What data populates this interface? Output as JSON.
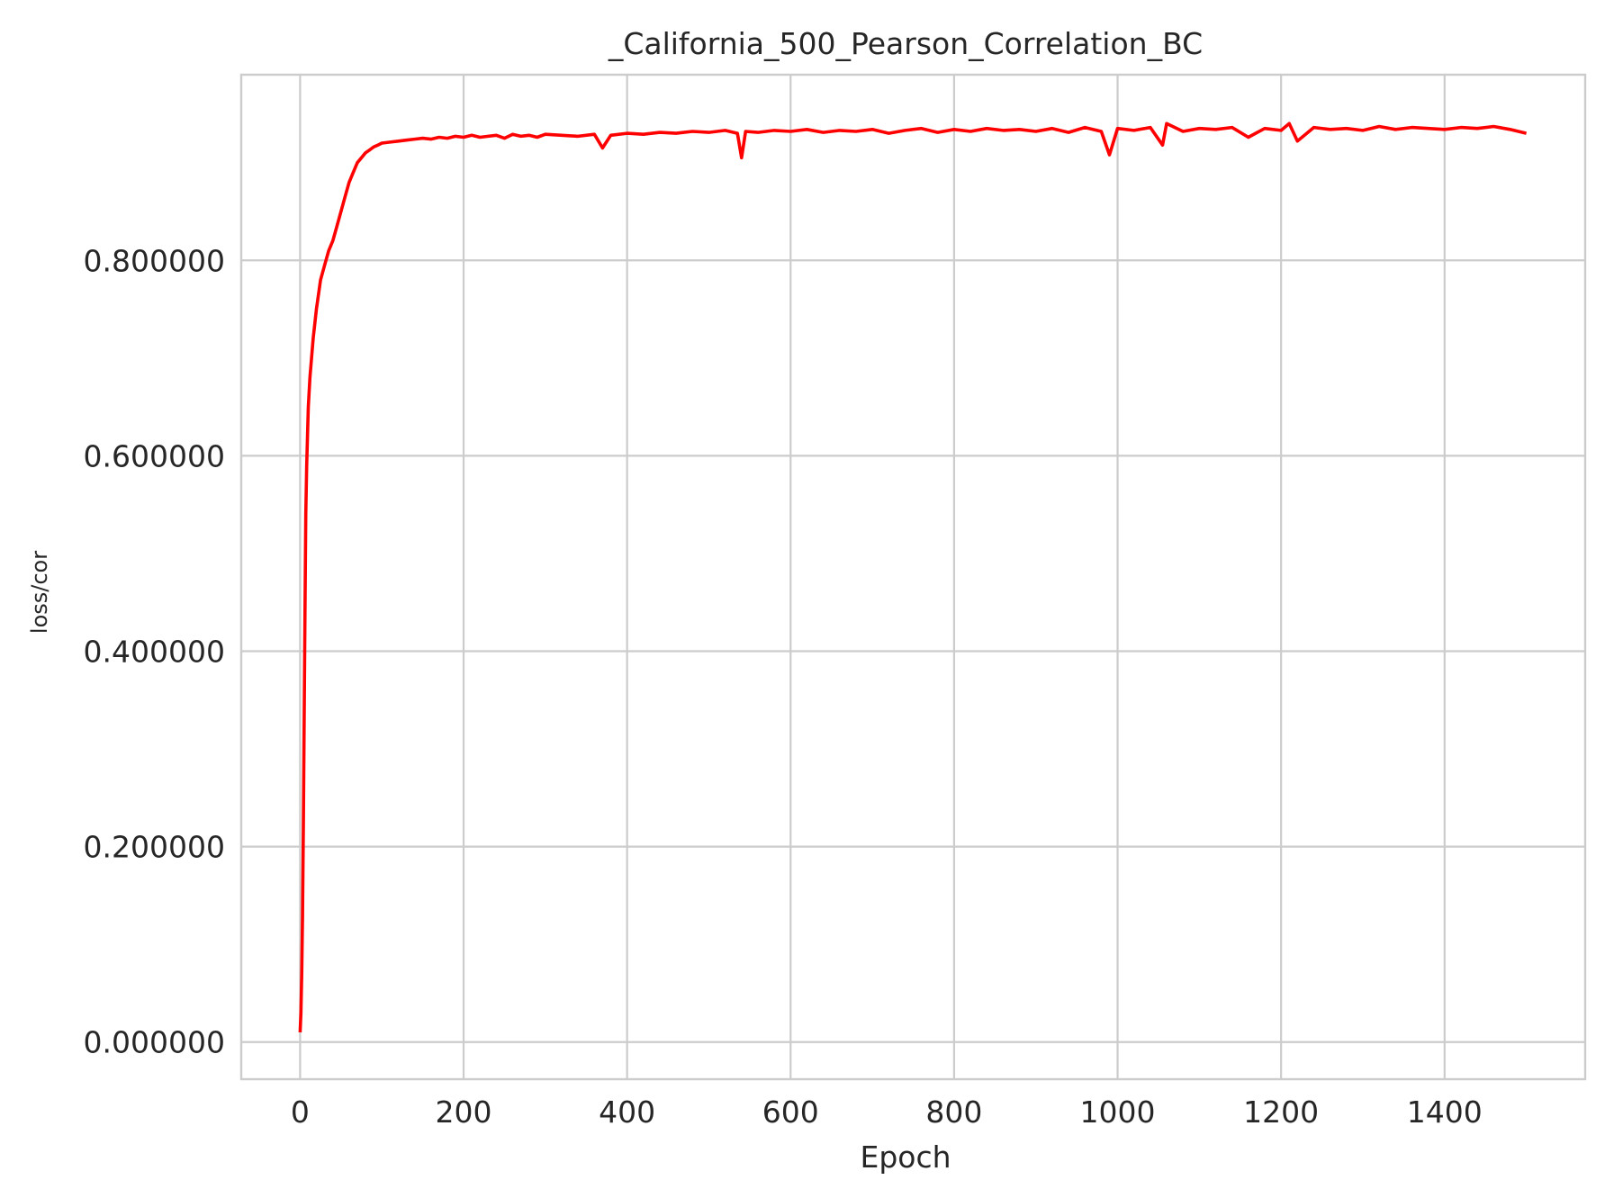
{
  "chart_data": {
    "type": "line",
    "title": "_California_500_Pearson_Correlation_BC",
    "xlabel": "Epoch",
    "ylabel": "loss/cor",
    "xlim": [
      -72,
      1572
    ],
    "ylim": [
      -0.038,
      0.99
    ],
    "x_ticks": [
      0,
      200,
      400,
      600,
      800,
      1000,
      1200,
      1400
    ],
    "x_tick_labels": [
      "0",
      "200",
      "400",
      "600",
      "800",
      "1000",
      "1200",
      "1400"
    ],
    "y_ticks": [
      0.0,
      0.2,
      0.4,
      0.6,
      0.8
    ],
    "y_tick_labels": [
      "0.000000",
      "0.200000",
      "0.400000",
      "0.600000",
      "0.800000"
    ],
    "grid": true,
    "series": [
      {
        "color": "#ff0000",
        "x": [
          0,
          1,
          2,
          3,
          4,
          5,
          6,
          7,
          8,
          9,
          10,
          12,
          14,
          16,
          18,
          20,
          25,
          30,
          35,
          40,
          45,
          50,
          55,
          60,
          65,
          70,
          75,
          80,
          85,
          90,
          95,
          100,
          110,
          120,
          130,
          140,
          150,
          160,
          170,
          180,
          190,
          200,
          210,
          220,
          230,
          240,
          250,
          260,
          270,
          280,
          290,
          300,
          320,
          340,
          360,
          370,
          380,
          400,
          420,
          440,
          460,
          480,
          500,
          520,
          535,
          540,
          545,
          560,
          580,
          600,
          620,
          640,
          660,
          680,
          700,
          720,
          740,
          760,
          780,
          800,
          820,
          840,
          860,
          880,
          900,
          920,
          940,
          960,
          980,
          990,
          1000,
          1020,
          1040,
          1055,
          1060,
          1080,
          1100,
          1120,
          1140,
          1160,
          1180,
          1200,
          1210,
          1220,
          1240,
          1260,
          1280,
          1300,
          1320,
          1340,
          1360,
          1380,
          1400,
          1420,
          1440,
          1460,
          1480,
          1500
        ],
        "y": [
          0.01,
          0.03,
          0.07,
          0.13,
          0.22,
          0.33,
          0.44,
          0.54,
          0.59,
          0.62,
          0.65,
          0.68,
          0.7,
          0.72,
          0.735,
          0.75,
          0.78,
          0.795,
          0.81,
          0.82,
          0.835,
          0.85,
          0.865,
          0.88,
          0.89,
          0.9,
          0.905,
          0.91,
          0.913,
          0.916,
          0.918,
          0.92,
          0.921,
          0.922,
          0.923,
          0.924,
          0.925,
          0.924,
          0.926,
          0.925,
          0.927,
          0.926,
          0.928,
          0.926,
          0.927,
          0.928,
          0.925,
          0.929,
          0.927,
          0.928,
          0.926,
          0.929,
          0.928,
          0.927,
          0.929,
          0.915,
          0.928,
          0.93,
          0.929,
          0.931,
          0.93,
          0.932,
          0.931,
          0.933,
          0.93,
          0.905,
          0.932,
          0.931,
          0.933,
          0.932,
          0.934,
          0.931,
          0.933,
          0.932,
          0.934,
          0.93,
          0.933,
          0.935,
          0.931,
          0.934,
          0.932,
          0.935,
          0.933,
          0.934,
          0.932,
          0.935,
          0.931,
          0.936,
          0.932,
          0.908,
          0.935,
          0.933,
          0.936,
          0.918,
          0.94,
          0.932,
          0.935,
          0.934,
          0.936,
          0.926,
          0.935,
          0.933,
          0.94,
          0.922,
          0.936,
          0.934,
          0.935,
          0.933,
          0.937,
          0.934,
          0.936,
          0.935,
          0.934,
          0.936,
          0.935,
          0.937,
          0.934,
          0.93
        ]
      }
    ]
  }
}
